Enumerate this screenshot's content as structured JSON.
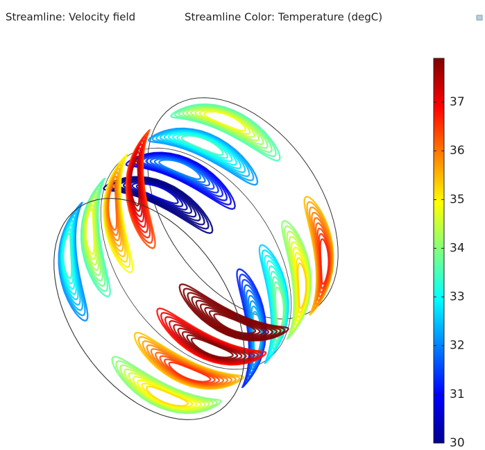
{
  "chart_data": {
    "type": "streamline",
    "title": "Streamline: Velocity field",
    "subtitle": "Streamline Color: Temperature (degC)",
    "ylim": [
      30,
      37.9
    ],
    "yticks": [
      30,
      31,
      32,
      33,
      34,
      35,
      36,
      37
    ]
  }
}
